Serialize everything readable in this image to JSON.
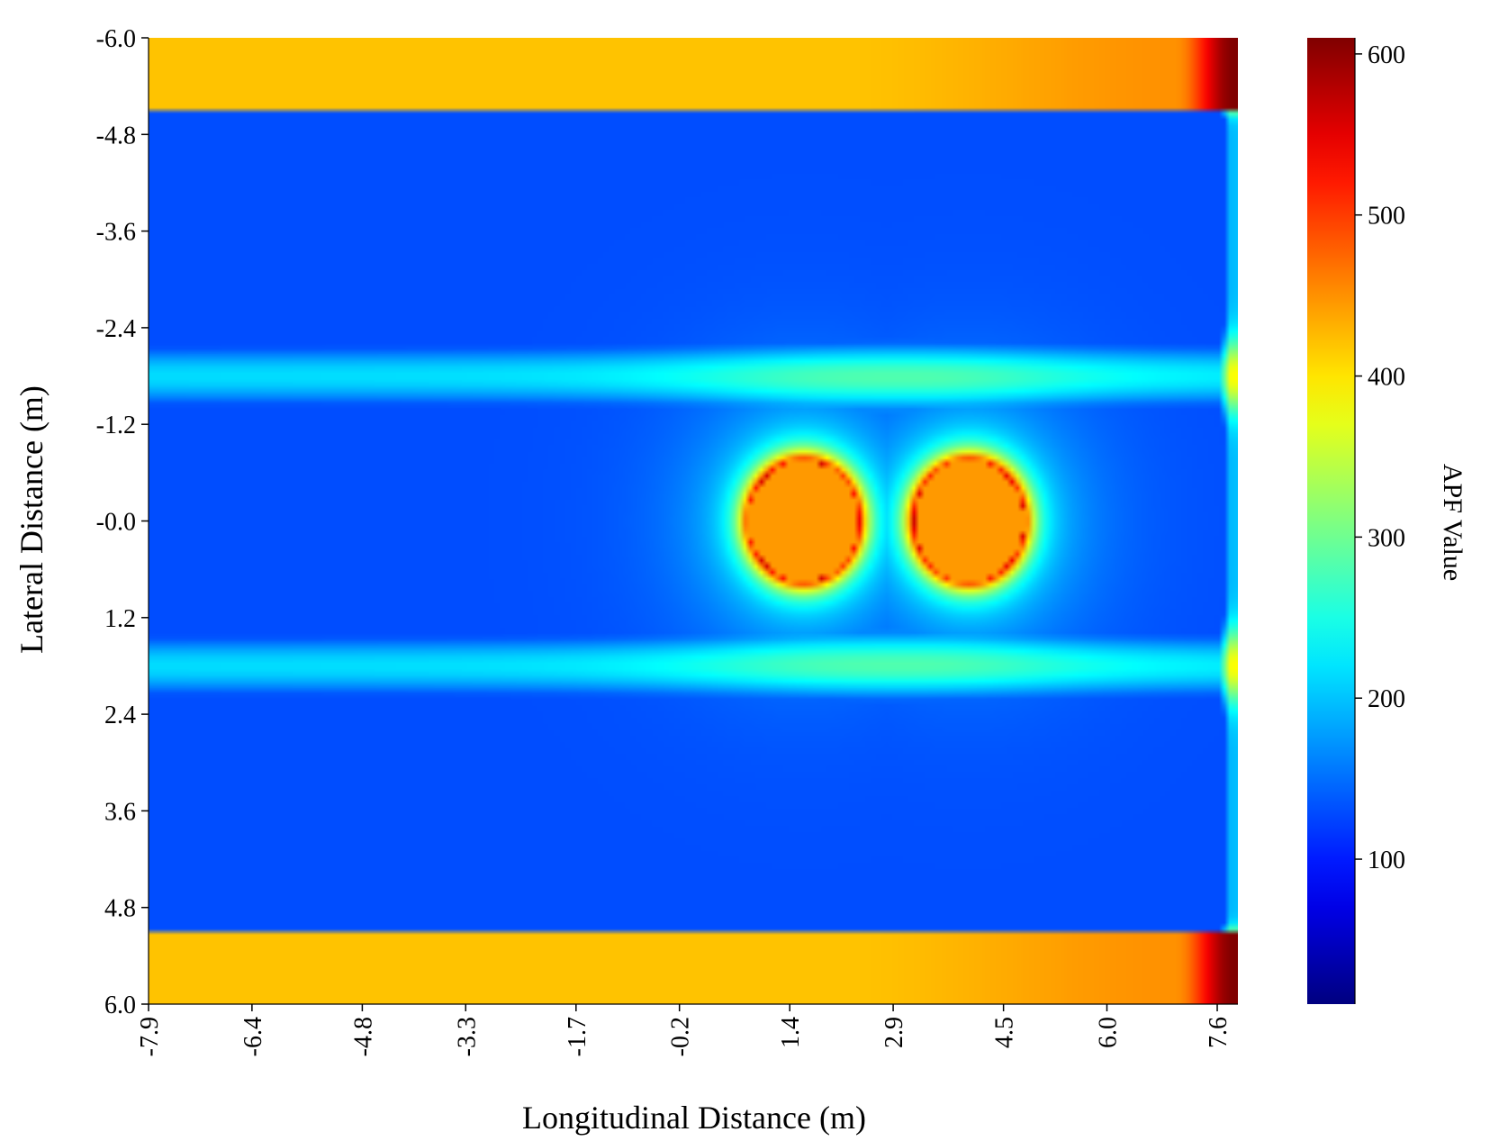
{
  "chart_data": {
    "type": "heatmap",
    "title": "",
    "xlabel": "Longitudinal Distance (m)",
    "ylabel": "Lateral Distance (m)",
    "x_ticks": [
      "-7.9",
      "-6.4",
      "-4.8",
      "-3.3",
      "-1.7",
      "-0.2",
      "1.4",
      "2.9",
      "4.5",
      "6.0",
      "7.6"
    ],
    "y_ticks": [
      "-6.0",
      "-4.8",
      "-3.6",
      "-2.4",
      "-1.2",
      "-0.0",
      "1.2",
      "2.4",
      "3.6",
      "4.8",
      "6.0"
    ],
    "xlim": [
      -7.9,
      7.9
    ],
    "ylim": [
      -6.0,
      6.0
    ],
    "y_inverted": true,
    "colorbar": {
      "label": "APF Value",
      "colormap": "jet",
      "range": [
        10,
        610
      ],
      "ticks": [
        "100",
        "200",
        "300",
        "400",
        "500",
        "600"
      ]
    },
    "field": {
      "road_boundaries_lateral": [
        -5.1,
        5.1
      ],
      "boundary_value": 420,
      "boundary_value_at_far_end": 610,
      "lane_line_laterals": [
        -1.8,
        1.8
      ],
      "lane_line_value": 215,
      "lane_line_value_near_obstacles": 260,
      "free_lane_value": 30,
      "right_edge_longitudinal": 7.8,
      "right_edge_value": 190,
      "obstacles": [
        {
          "longitudinal": 1.6,
          "lateral": 0.0,
          "half_length": 0.8,
          "half_width": 0.75,
          "value": 445
        },
        {
          "longitudinal": 4.0,
          "lateral": 0.0,
          "half_length": 0.8,
          "half_width": 0.75,
          "value": 445
        }
      ]
    }
  }
}
